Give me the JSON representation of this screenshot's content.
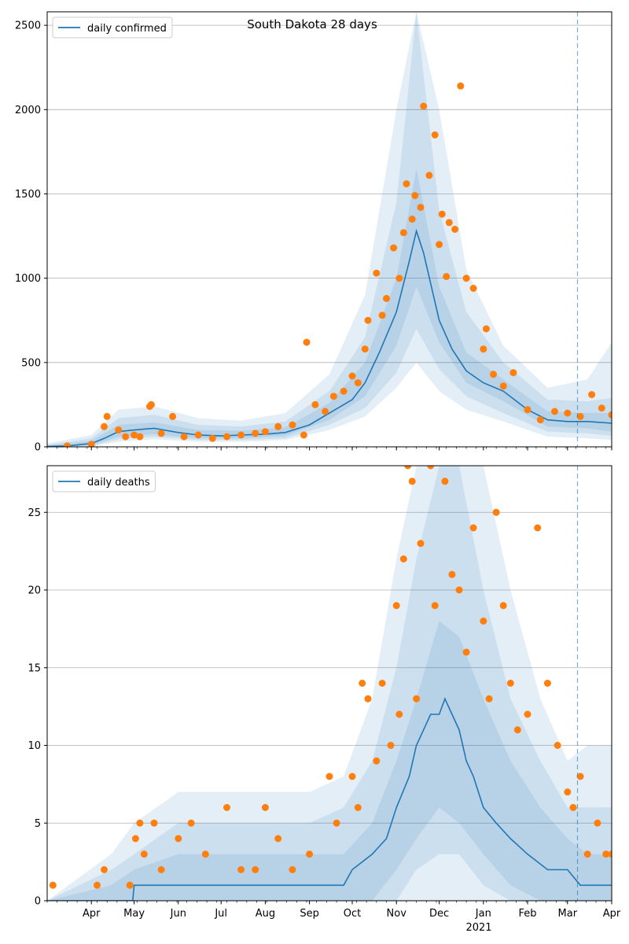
{
  "figure": {
    "title": "South Dakota 28 days",
    "year_label": "2021"
  },
  "colors": {
    "line": "#1f77b4",
    "points": "#ff7f0e",
    "band": "#1f77b4",
    "grid": "#b0b0b0",
    "forecast_marker": "#1f77b4"
  },
  "chart_data": [
    {
      "type": "line",
      "title": "South Dakota 28 days",
      "legend": "top-left",
      "grid": "horizontal",
      "forecast_start": "2021-03-08",
      "xlim": [
        "2020-03-01",
        "2021-04-01"
      ],
      "ylim": [
        0,
        2580
      ],
      "yticks": [
        0,
        500,
        1000,
        1500,
        2000,
        2500
      ],
      "series": [
        {
          "name": "daily confirmed",
          "kind": "line",
          "x": [
            "2020-03-01",
            "2020-03-15",
            "2020-04-01",
            "2020-04-10",
            "2020-04-20",
            "2020-05-01",
            "2020-05-15",
            "2020-06-01",
            "2020-06-15",
            "2020-07-01",
            "2020-07-15",
            "2020-08-01",
            "2020-08-15",
            "2020-09-01",
            "2020-09-15",
            "2020-10-01",
            "2020-10-10",
            "2020-10-20",
            "2020-11-01",
            "2020-11-10",
            "2020-11-15",
            "2020-11-20",
            "2020-12-01",
            "2020-12-10",
            "2020-12-20",
            "2021-01-01",
            "2021-01-15",
            "2021-02-01",
            "2021-02-15",
            "2021-03-01",
            "2021-03-15",
            "2021-04-01"
          ],
          "y": [
            2,
            5,
            20,
            50,
            90,
            100,
            110,
            85,
            70,
            65,
            70,
            75,
            85,
            130,
            200,
            280,
            380,
            560,
            800,
            1100,
            1280,
            1150,
            750,
            580,
            450,
            380,
            330,
            220,
            160,
            150,
            150,
            140
          ]
        },
        {
          "name": "interval_50",
          "kind": "band",
          "x": [
            "2020-03-01",
            "2020-04-01",
            "2020-04-20",
            "2020-05-15",
            "2020-06-15",
            "2020-07-15",
            "2020-08-15",
            "2020-09-15",
            "2020-10-10",
            "2020-11-01",
            "2020-11-15",
            "2020-12-01",
            "2020-12-20",
            "2021-01-15",
            "2021-02-15",
            "2021-03-15",
            "2021-04-01"
          ],
          "lower": [
            0,
            10,
            60,
            75,
            50,
            50,
            65,
            160,
            300,
            600,
            950,
            620,
            380,
            270,
            120,
            110,
            90
          ],
          "upper": [
            8,
            35,
            130,
            145,
            100,
            95,
            115,
            260,
            500,
            1000,
            1650,
            950,
            560,
            400,
            210,
            200,
            200
          ]
        },
        {
          "name": "interval_80",
          "kind": "band",
          "x": [
            "2020-03-01",
            "2020-04-01",
            "2020-04-20",
            "2020-05-15",
            "2020-06-15",
            "2020-07-15",
            "2020-08-15",
            "2020-09-15",
            "2020-10-10",
            "2020-11-01",
            "2020-11-15",
            "2020-12-01",
            "2020-12-20",
            "2021-01-15",
            "2021-02-15",
            "2021-03-15",
            "2021-04-01"
          ],
          "lower": [
            0,
            5,
            45,
            60,
            40,
            40,
            50,
            130,
            230,
            440,
            700,
            460,
            300,
            200,
            90,
            80,
            65
          ],
          "upper": [
            12,
            50,
            170,
            190,
            130,
            120,
            150,
            330,
            650,
            1450,
            2580,
            1400,
            800,
            500,
            280,
            270,
            290
          ]
        },
        {
          "name": "interval_95",
          "kind": "band",
          "x": [
            "2020-03-01",
            "2020-04-01",
            "2020-04-20",
            "2020-05-15",
            "2020-06-15",
            "2020-07-15",
            "2020-08-15",
            "2020-09-15",
            "2020-10-10",
            "2020-11-01",
            "2020-11-15",
            "2020-12-01",
            "2020-12-20",
            "2021-01-15",
            "2021-02-15",
            "2021-03-15",
            "2021-04-01"
          ],
          "lower": [
            0,
            2,
            30,
            45,
            30,
            30,
            40,
            100,
            180,
            350,
            500,
            330,
            220,
            150,
            60,
            50,
            40
          ],
          "upper": [
            20,
            70,
            220,
            240,
            170,
            155,
            200,
            430,
            900,
            2000,
            2580,
            2000,
            1050,
            600,
            350,
            400,
            620
          ]
        },
        {
          "name": "observed",
          "kind": "scatter",
          "x": [
            "2020-03-15",
            "2020-04-01",
            "2020-04-10",
            "2020-04-12",
            "2020-04-20",
            "2020-04-25",
            "2020-05-01",
            "2020-05-05",
            "2020-05-12",
            "2020-05-13",
            "2020-05-20",
            "2020-05-28",
            "2020-06-05",
            "2020-06-15",
            "2020-06-25",
            "2020-07-05",
            "2020-07-15",
            "2020-07-25",
            "2020-08-01",
            "2020-08-10",
            "2020-08-20",
            "2020-08-28",
            "2020-08-30",
            "2020-09-05",
            "2020-09-12",
            "2020-09-18",
            "2020-09-25",
            "2020-10-01",
            "2020-10-05",
            "2020-10-10",
            "2020-10-12",
            "2020-10-18",
            "2020-10-22",
            "2020-10-25",
            "2020-10-30",
            "2020-11-03",
            "2020-11-06",
            "2020-11-08",
            "2020-11-12",
            "2020-11-14",
            "2020-11-18",
            "2020-11-20",
            "2020-11-24",
            "2020-11-28",
            "2020-12-01",
            "2020-12-03",
            "2020-12-06",
            "2020-12-08",
            "2020-12-12",
            "2020-12-16",
            "2020-12-20",
            "2020-12-25",
            "2021-01-01",
            "2021-01-03",
            "2021-01-08",
            "2021-01-15",
            "2021-01-22",
            "2021-02-01",
            "2021-02-10",
            "2021-02-20",
            "2021-03-01",
            "2021-03-10",
            "2021-03-18",
            "2021-03-25",
            "2021-04-01"
          ],
          "y": [
            5,
            15,
            120,
            180,
            100,
            60,
            70,
            60,
            240,
            250,
            80,
            180,
            60,
            70,
            50,
            60,
            70,
            80,
            90,
            120,
            130,
            70,
            620,
            250,
            210,
            300,
            330,
            420,
            380,
            580,
            750,
            1030,
            780,
            880,
            1180,
            1000,
            1270,
            1560,
            1350,
            1490,
            1420,
            2020,
            1610,
            1850,
            1200,
            1380,
            1010,
            1330,
            1290,
            2140,
            1000,
            940,
            580,
            700,
            430,
            360,
            440,
            220,
            160,
            210,
            200,
            180,
            310,
            230,
            190
          ]
        }
      ]
    },
    {
      "type": "line",
      "title": "",
      "legend": "top-left",
      "grid": "horizontal",
      "forecast_start": "2021-03-08",
      "xlim": [
        "2020-03-01",
        "2021-04-01"
      ],
      "ylim": [
        0,
        28
      ],
      "yticks": [
        0,
        5,
        10,
        15,
        20,
        25
      ],
      "xticks": [
        "Apr",
        "May",
        "Jun",
        "Jul",
        "Aug",
        "Sep",
        "Oct",
        "Nov",
        "Dec",
        "Jan",
        "Feb",
        "Mar",
        "Apr"
      ],
      "xtick_dates": [
        "2020-04-01",
        "2020-05-01",
        "2020-06-01",
        "2020-07-01",
        "2020-08-01",
        "2020-09-01",
        "2020-10-01",
        "2020-11-01",
        "2020-12-01",
        "2021-01-01",
        "2021-02-01",
        "2021-03-01",
        "2021-04-01"
      ],
      "series": [
        {
          "name": "daily deaths",
          "kind": "line",
          "x": [
            "2020-03-01",
            "2020-04-30",
            "2020-05-01",
            "2020-09-25",
            "2020-10-01",
            "2020-10-15",
            "2020-10-25",
            "2020-11-01",
            "2020-11-10",
            "2020-11-15",
            "2020-11-20",
            "2020-11-25",
            "2020-12-01",
            "2020-12-05",
            "2020-12-10",
            "2020-12-15",
            "2020-12-20",
            "2020-12-25",
            "2021-01-01",
            "2021-01-10",
            "2021-01-20",
            "2021-02-01",
            "2021-02-15",
            "2021-03-01",
            "2021-03-10",
            "2021-04-01"
          ],
          "y": [
            0,
            0,
            1,
            1,
            2,
            3,
            4,
            6,
            8,
            10,
            11,
            12,
            12,
            13,
            12,
            11,
            9,
            8,
            6,
            5,
            4,
            3,
            2,
            2,
            1,
            1
          ]
        },
        {
          "name": "interval_50",
          "kind": "band",
          "x": [
            "2020-03-01",
            "2020-04-15",
            "2020-05-01",
            "2020-06-01",
            "2020-07-01",
            "2020-08-01",
            "2020-09-01",
            "2020-09-25",
            "2020-10-15",
            "2020-11-01",
            "2020-11-15",
            "2020-12-01",
            "2020-12-15",
            "2021-01-01",
            "2021-01-20",
            "2021-02-10",
            "2021-03-01",
            "2021-03-15",
            "2021-04-01"
          ],
          "lower": [
            0,
            0,
            0,
            0,
            0,
            0,
            0,
            0,
            0,
            2,
            4,
            6,
            5,
            3,
            1,
            0,
            0,
            0,
            0
          ],
          "upper": [
            0,
            1,
            2,
            3,
            3,
            3,
            3,
            3,
            5,
            9,
            13,
            18,
            17,
            13,
            9,
            6,
            4,
            3,
            3
          ]
        },
        {
          "name": "interval_80",
          "kind": "band",
          "x": [
            "2020-03-01",
            "2020-04-15",
            "2020-05-01",
            "2020-06-01",
            "2020-07-01",
            "2020-08-01",
            "2020-09-01",
            "2020-09-25",
            "2020-10-15",
            "2020-11-01",
            "2020-11-15",
            "2020-12-01",
            "2020-12-15",
            "2021-01-01",
            "2021-01-20",
            "2021-02-10",
            "2021-03-01",
            "2021-03-15",
            "2021-04-01"
          ],
          "lower": [
            0,
            0,
            0,
            0,
            0,
            0,
            0,
            0,
            0,
            0,
            2,
            3,
            3,
            1,
            0,
            0,
            0,
            0,
            0
          ],
          "upper": [
            0,
            2,
            3,
            5,
            5,
            5,
            5,
            6,
            9,
            15,
            22,
            28,
            28,
            20,
            13,
            9,
            6,
            6,
            6
          ]
        },
        {
          "name": "interval_95",
          "kind": "band",
          "x": [
            "2020-03-01",
            "2020-04-15",
            "2020-05-01",
            "2020-06-01",
            "2020-07-01",
            "2020-08-01",
            "2020-09-01",
            "2020-09-25",
            "2020-10-15",
            "2020-11-01",
            "2020-11-15",
            "2020-12-01",
            "2020-12-15",
            "2021-01-01",
            "2021-01-20",
            "2021-02-10",
            "2021-03-01",
            "2021-03-15",
            "2021-04-01"
          ],
          "lower": [
            0,
            0,
            0,
            0,
            0,
            0,
            0,
            0,
            0,
            0,
            0,
            0,
            0,
            0,
            0,
            0,
            0,
            0,
            0
          ],
          "upper": [
            0,
            3,
            5,
            7,
            7,
            7,
            7,
            8,
            13,
            22,
            28,
            28,
            28,
            28,
            20,
            13,
            9,
            10,
            10
          ]
        },
        {
          "name": "observed",
          "kind": "scatter",
          "x": [
            "2020-03-05",
            "2020-04-05",
            "2020-04-10",
            "2020-04-28",
            "2020-05-02",
            "2020-05-05",
            "2020-05-08",
            "2020-05-15",
            "2020-05-20",
            "2020-06-01",
            "2020-06-10",
            "2020-06-20",
            "2020-07-05",
            "2020-07-15",
            "2020-07-25",
            "2020-08-01",
            "2020-08-10",
            "2020-08-20",
            "2020-09-01",
            "2020-09-15",
            "2020-09-20",
            "2020-10-01",
            "2020-10-05",
            "2020-10-08",
            "2020-10-12",
            "2020-10-18",
            "2020-10-22",
            "2020-10-28",
            "2020-11-01",
            "2020-11-03",
            "2020-11-06",
            "2020-11-09",
            "2020-11-12",
            "2020-11-15",
            "2020-11-18",
            "2020-11-25",
            "2020-11-28",
            "2020-12-05",
            "2020-12-10",
            "2020-12-15",
            "2020-12-20",
            "2020-12-25",
            "2021-01-01",
            "2021-01-05",
            "2021-01-10",
            "2021-01-15",
            "2021-01-20",
            "2021-01-25",
            "2021-02-01",
            "2021-02-08",
            "2021-02-15",
            "2021-02-22",
            "2021-03-01",
            "2021-03-05",
            "2021-03-10",
            "2021-03-15",
            "2021-03-22",
            "2021-03-28",
            "2021-04-01"
          ],
          "y": [
            1,
            1,
            2,
            1,
            4,
            5,
            3,
            5,
            2,
            4,
            5,
            3,
            6,
            2,
            2,
            6,
            4,
            2,
            3,
            8,
            5,
            8,
            6,
            14,
            13,
            9,
            14,
            10,
            19,
            12,
            22,
            28,
            27,
            13,
            23,
            28,
            19,
            27,
            21,
            20,
            16,
            24,
            18,
            13,
            25,
            19,
            14,
            11,
            12,
            24,
            14,
            10,
            7,
            6,
            8,
            3,
            5,
            3,
            3
          ]
        }
      ]
    }
  ]
}
